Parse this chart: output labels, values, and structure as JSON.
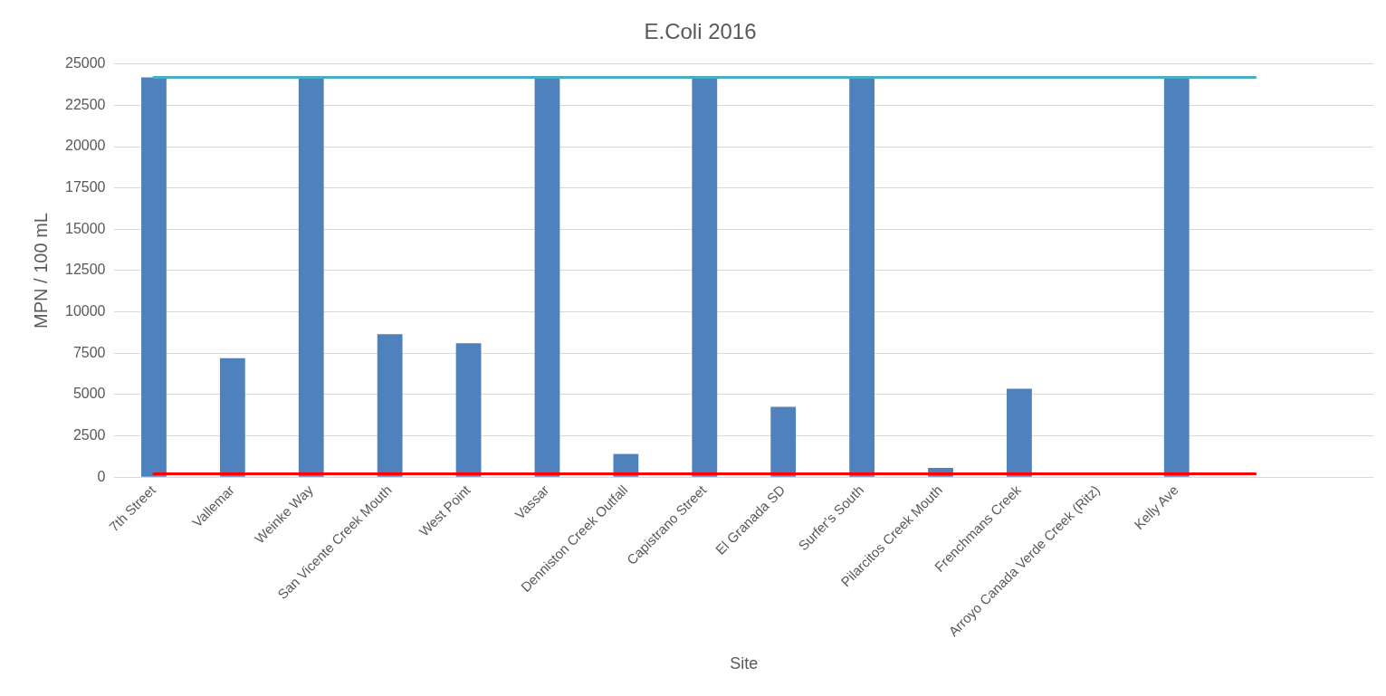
{
  "chart_data": {
    "type": "bar",
    "title": "E.Coli 2016",
    "xlabel": "Site",
    "ylabel": "MPN / 100 mL",
    "categories": [
      "7th Street",
      "Vallemar",
      "Weinke Way",
      "San Vicente Creek Mouth",
      "West Point",
      "Vassar",
      "Denniston Creek Outfall",
      "Capistrano Street",
      "El Granada SD",
      "Surfer's South",
      "Pilarcitos Creek Mouth",
      "Frenchmans Creek",
      "Arroyo Canada Verde Creek (Ritz)",
      "Kelly Ave",
      null,
      null
    ],
    "series": [
      {
        "color": "#4f81bd",
        "values": [
          24200,
          7200,
          24200,
          8650,
          8100,
          24200,
          1400,
          24200,
          4250,
          24200,
          550,
          5350,
          null,
          24200,
          null,
          null
        ]
      },
      {
        "type": "line",
        "color": "#4bacc6",
        "values": [
          24200,
          24200,
          24200,
          24200,
          24200,
          24200,
          24200,
          24200,
          24200,
          24200,
          24200,
          24200,
          24200,
          24200,
          24200,
          null
        ]
      },
      {
        "type": "line",
        "color": "#ff0000",
        "values": [
          200,
          200,
          200,
          200,
          200,
          200,
          200,
          200,
          200,
          200,
          200,
          200,
          200,
          200,
          200,
          null
        ]
      }
    ],
    "ylim": [
      0,
      25000
    ],
    "yticks": [
      0,
      2500,
      5000,
      7500,
      10000,
      12500,
      15000,
      17500,
      20000,
      22500,
      25000
    ],
    "grid": "y",
    "marker": "none"
  }
}
